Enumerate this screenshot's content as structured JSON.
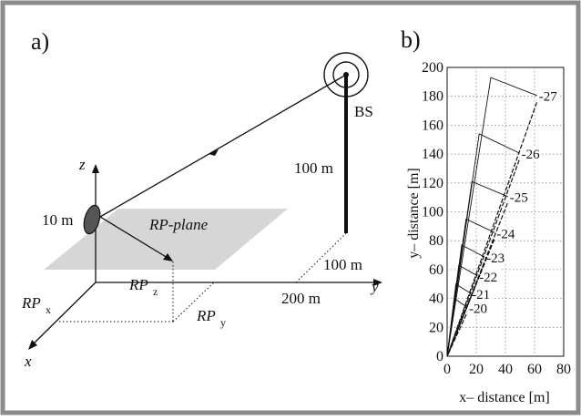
{
  "panel_a": {
    "label": "a)",
    "axes": {
      "z": "z",
      "y": "y",
      "x": "x"
    },
    "labels": {
      "bs": "BS",
      "height_100m": "100 m",
      "height_10m": "10 m",
      "dist_100m": "100 m",
      "dist_200m": "200 m",
      "rp_plane": "RP-plane",
      "rp_x": "RP",
      "rp_x_sub": "x",
      "rp_y": "RP",
      "rp_y_sub": "y",
      "rp_z": "RP",
      "rp_z_sub": "z"
    }
  },
  "panel_b": {
    "label": "b)",
    "chart_data": {
      "type": "line",
      "xlabel": "x– distance [m]",
      "ylabel": "y– distance [m]",
      "xlim": [
        0,
        80
      ],
      "ylim": [
        0,
        200
      ],
      "xticks": [
        0,
        20,
        40,
        60,
        80
      ],
      "yticks": [
        0,
        20,
        40,
        60,
        80,
        100,
        120,
        140,
        160,
        180,
        200
      ],
      "grid": true,
      "contours": [
        {
          "label": "-20",
          "x": [
            5,
            15
          ],
          "y": [
            40,
            33
          ]
        },
        {
          "label": "-21",
          "x": [
            6,
            17
          ],
          "y": [
            50,
            43
          ]
        },
        {
          "label": "-22",
          "x": [
            8,
            22
          ],
          "y": [
            63,
            55
          ]
        },
        {
          "label": "-23",
          "x": [
            10,
            27
          ],
          "y": [
            77,
            68
          ]
        },
        {
          "label": "-24",
          "x": [
            13,
            34
          ],
          "y": [
            95,
            85
          ]
        },
        {
          "label": "-25",
          "x": [
            17,
            43
          ],
          "y": [
            121,
            110
          ]
        },
        {
          "label": "-26",
          "x": [
            22,
            51
          ],
          "y": [
            154,
            140
          ]
        },
        {
          "label": "-27",
          "x": [
            30,
            63
          ],
          "y": [
            193,
            180
          ]
        }
      ]
    }
  }
}
